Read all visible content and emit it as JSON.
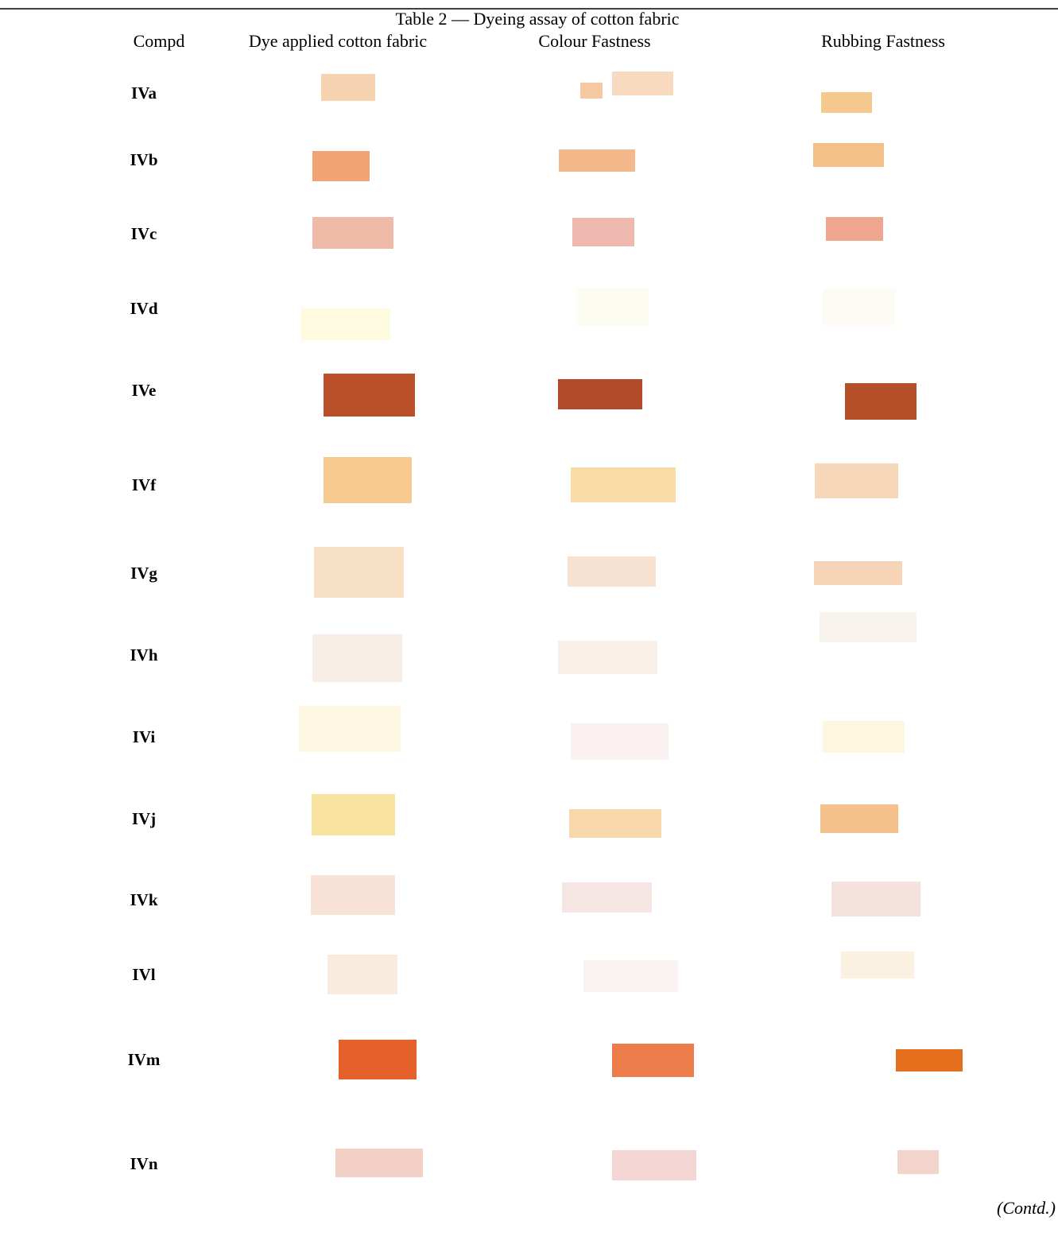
{
  "table": {
    "title": "Table 2 — Dyeing assay of cotton fabric",
    "headers": [
      "Compd",
      "Dye applied cotton fabric",
      "Colour Fastness",
      "Rubbing Fastness"
    ],
    "rows": [
      "IVa",
      "IVb",
      "IVc",
      "IVd",
      "IVe",
      "IVf",
      "IVg",
      "IVh",
      "IVi",
      "IVj",
      "IVk",
      "IVl",
      "IVm",
      "IVn"
    ]
  },
  "footer": "(Contd.)"
}
